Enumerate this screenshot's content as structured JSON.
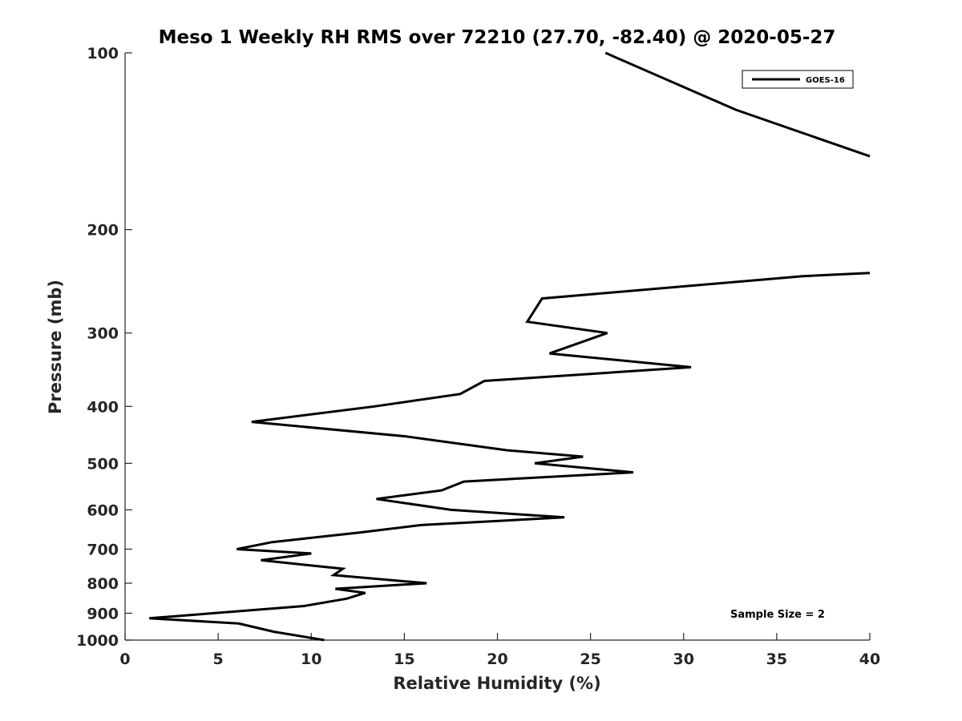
{
  "chart_data": {
    "type": "line",
    "title": "Meso 1 Weekly RH RMS over 72210 (27.70, -82.40) @ 2020-05-27",
    "xlabel": "Relative Humidity (%)",
    "ylabel": "Pressure (mb)",
    "xlim": [
      0,
      40
    ],
    "ylim": [
      100,
      1000
    ],
    "yscale": "log-reversed",
    "xticks": [
      0,
      5,
      10,
      15,
      20,
      25,
      30,
      35,
      40
    ],
    "yticks": [
      100,
      200,
      300,
      400,
      500,
      600,
      700,
      800,
      900,
      1000
    ],
    "xtick_labels": [
      "0",
      "5",
      "10",
      "15",
      "20",
      "25",
      "30",
      "35",
      "40"
    ],
    "ytick_labels": [
      "100",
      "200",
      "300",
      "400",
      "500",
      "600",
      "700",
      "800",
      "900",
      "1000"
    ],
    "grid": false,
    "legend_position": "top-right",
    "annotation": "Sample Size = 2",
    "colors": {
      "line": "#000000",
      "axis": "#262626"
    },
    "series": [
      {
        "name": "GOES-16",
        "segments": [
          [
            {
              "x": 25.8,
              "p": 100
            },
            {
              "x": 32.8,
              "p": 125
            },
            {
              "x": 40.0,
              "p": 150
            }
          ],
          [
            {
              "x": 40.0,
              "p": 237
            },
            {
              "x": 36.4,
              "p": 240
            },
            {
              "x": 22.4,
              "p": 262
            },
            {
              "x": 21.6,
              "p": 287
            },
            {
              "x": 25.9,
              "p": 300
            },
            {
              "x": 22.8,
              "p": 325
            },
            {
              "x": 30.4,
              "p": 343
            },
            {
              "x": 19.3,
              "p": 362
            },
            {
              "x": 18.0,
              "p": 381
            },
            {
              "x": 13.4,
              "p": 400
            },
            {
              "x": 6.8,
              "p": 425
            },
            {
              "x": 15.1,
              "p": 450
            },
            {
              "x": 20.5,
              "p": 475
            },
            {
              "x": 24.6,
              "p": 487
            },
            {
              "x": 22.0,
              "p": 500
            },
            {
              "x": 27.3,
              "p": 518
            },
            {
              "x": 18.2,
              "p": 537
            },
            {
              "x": 17.0,
              "p": 556
            },
            {
              "x": 13.5,
              "p": 575
            },
            {
              "x": 17.5,
              "p": 600
            },
            {
              "x": 23.6,
              "p": 618
            },
            {
              "x": 15.9,
              "p": 637
            },
            {
              "x": 12.6,
              "p": 656
            },
            {
              "x": 7.9,
              "p": 681
            },
            {
              "x": 6.0,
              "p": 700
            },
            {
              "x": 10.0,
              "p": 712
            },
            {
              "x": 7.3,
              "p": 731
            },
            {
              "x": 11.7,
              "p": 756
            },
            {
              "x": 11.2,
              "p": 775
            },
            {
              "x": 16.2,
              "p": 800
            },
            {
              "x": 11.3,
              "p": 818
            },
            {
              "x": 12.9,
              "p": 831
            },
            {
              "x": 11.9,
              "p": 850
            },
            {
              "x": 9.6,
              "p": 875
            },
            {
              "x": 1.3,
              "p": 918
            },
            {
              "x": 6.1,
              "p": 937
            },
            {
              "x": 8.0,
              "p": 968
            },
            {
              "x": 10.7,
              "p": 1000
            }
          ]
        ]
      }
    ]
  }
}
